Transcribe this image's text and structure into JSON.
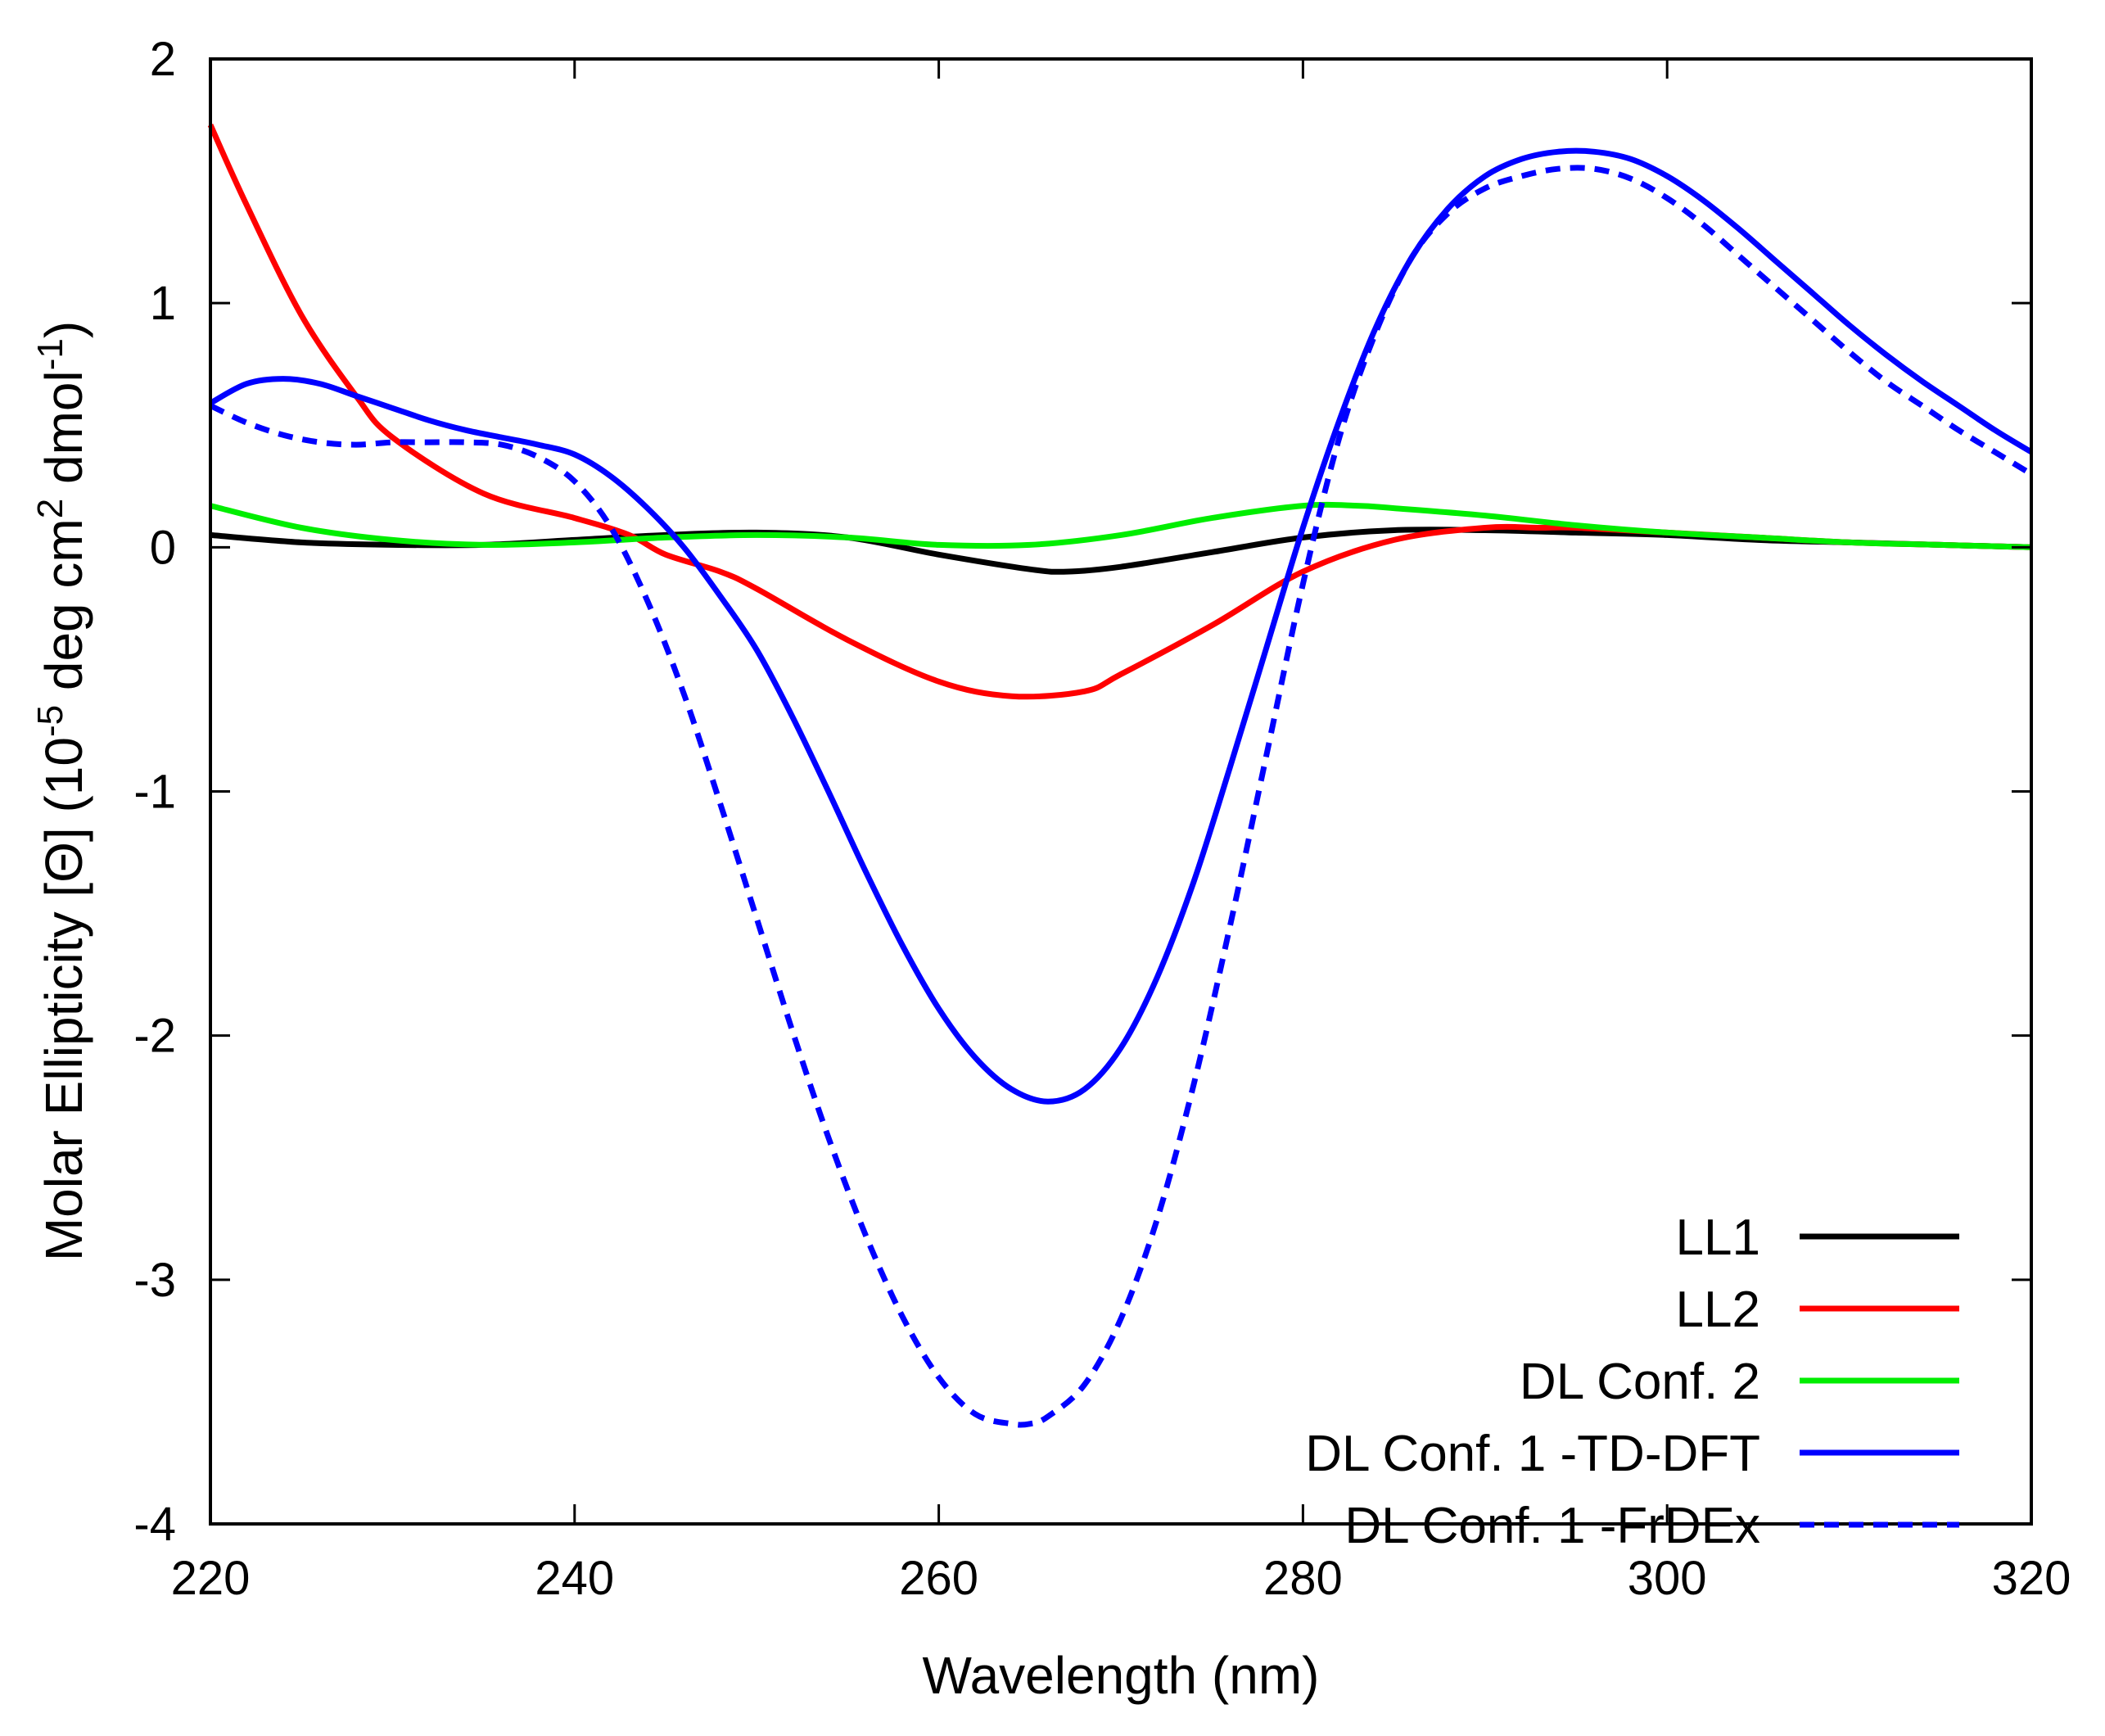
{
  "chart_data": {
    "type": "line",
    "title": "",
    "xlabel": "Wavelength (nm)",
    "ylabel": {
      "main": "Molar Ellipticity [",
      "theta": "Θ",
      "after_theta": "] (10",
      "exp1": "-5",
      "mid1": " deg cm",
      "exp2": "2",
      "mid2": " dmol",
      "exp3": "-1",
      "end": ")"
    },
    "xlim": [
      220,
      320
    ],
    "ylim": [
      -4,
      2
    ],
    "xticks": [
      220,
      240,
      260,
      280,
      300,
      320
    ],
    "yticks": [
      -4,
      -3,
      -2,
      -1,
      0,
      1,
      2
    ],
    "grid": false,
    "legend_position": "bottom-right",
    "series": [
      {
        "name": "LL1",
        "color": "#000000",
        "dashed": false,
        "x": [
          220,
          225,
          230,
          235,
          240,
          245,
          250,
          255,
          260,
          265,
          267,
          270,
          275,
          280,
          285,
          290,
          295,
          300,
          305,
          310,
          315,
          320
        ],
        "y": [
          0.05,
          0.02,
          0.01,
          0.01,
          0.03,
          0.05,
          0.06,
          0.04,
          -0.03,
          -0.09,
          -0.1,
          -0.08,
          -0.02,
          0.04,
          0.07,
          0.07,
          0.06,
          0.05,
          0.03,
          0.02,
          0.01,
          0.0
        ]
      },
      {
        "name": "LL2",
        "color": "#ff0000",
        "dashed": false,
        "x": [
          220,
          222,
          225,
          228,
          230,
          235,
          240,
          243,
          245,
          248,
          250,
          255,
          260,
          264,
          268,
          270,
          275,
          280,
          285,
          290,
          293,
          295,
          300,
          305,
          310,
          315,
          320
        ],
        "y": [
          1.73,
          1.4,
          0.95,
          0.62,
          0.45,
          0.22,
          0.12,
          0.05,
          -0.03,
          -0.1,
          -0.17,
          -0.38,
          -0.55,
          -0.61,
          -0.59,
          -0.52,
          -0.32,
          -0.1,
          0.03,
          0.08,
          0.08,
          0.08,
          0.06,
          0.04,
          0.02,
          0.01,
          0.0
        ]
      },
      {
        "name": "DL Conf. 2",
        "color": "#00ee00",
        "dashed": false,
        "x": [
          220,
          225,
          230,
          235,
          240,
          245,
          250,
          255,
          260,
          265,
          270,
          275,
          280,
          283,
          285,
          290,
          295,
          300,
          305,
          310,
          315,
          320
        ],
        "y": [
          0.17,
          0.08,
          0.03,
          0.01,
          0.02,
          0.04,
          0.05,
          0.04,
          0.01,
          0.01,
          0.05,
          0.12,
          0.17,
          0.17,
          0.16,
          0.13,
          0.09,
          0.06,
          0.04,
          0.02,
          0.01,
          0.0
        ]
      },
      {
        "name": "DL Conf. 1 -TD-DFT",
        "color": "#0000ff",
        "dashed": false,
        "x": [
          220,
          222,
          224,
          226,
          228,
          230,
          232,
          234,
          236,
          238,
          240,
          242,
          244,
          246,
          248,
          250,
          252,
          254,
          256,
          258,
          260,
          262,
          264,
          266,
          268,
          270,
          272,
          274,
          276,
          278,
          280,
          282,
          284,
          286,
          288,
          290,
          292,
          294,
          296,
          298,
          300,
          302,
          304,
          306,
          308,
          310,
          312,
          314,
          316,
          318,
          320
        ],
        "y": [
          0.59,
          0.67,
          0.69,
          0.67,
          0.62,
          0.57,
          0.52,
          0.48,
          0.45,
          0.42,
          0.38,
          0.29,
          0.16,
          0.0,
          -0.2,
          -0.42,
          -0.7,
          -1.01,
          -1.33,
          -1.63,
          -1.89,
          -2.09,
          -2.22,
          -2.27,
          -2.22,
          -2.05,
          -1.76,
          -1.37,
          -0.9,
          -0.41,
          0.08,
          0.52,
          0.9,
          1.19,
          1.39,
          1.52,
          1.59,
          1.62,
          1.62,
          1.59,
          1.52,
          1.42,
          1.3,
          1.17,
          1.04,
          0.91,
          0.79,
          0.68,
          0.58,
          0.48,
          0.39
        ]
      },
      {
        "name": "DL Conf. 1 -FrDEx",
        "color": "#0000ff",
        "dashed": true,
        "x": [
          220,
          222,
          224,
          226,
          228,
          230,
          232,
          234,
          236,
          238,
          240,
          242,
          244,
          246,
          248,
          250,
          252,
          254,
          256,
          258,
          260,
          262,
          264,
          265,
          266,
          268,
          270,
          272,
          274,
          276,
          278,
          280,
          282,
          284,
          286,
          288,
          290,
          292,
          294,
          296,
          298,
          300,
          302,
          304,
          306,
          308,
          310,
          312,
          314,
          316,
          318,
          320
        ],
        "y": [
          0.58,
          0.51,
          0.46,
          0.43,
          0.42,
          0.43,
          0.43,
          0.43,
          0.42,
          0.37,
          0.27,
          0.08,
          -0.22,
          -0.6,
          -1.05,
          -1.52,
          -1.99,
          -2.43,
          -2.82,
          -3.15,
          -3.4,
          -3.55,
          -3.59,
          -3.59,
          -3.56,
          -3.43,
          -3.16,
          -2.75,
          -2.2,
          -1.55,
          -0.85,
          -0.15,
          0.45,
          0.88,
          1.19,
          1.37,
          1.47,
          1.52,
          1.55,
          1.55,
          1.51,
          1.43,
          1.32,
          1.19,
          1.06,
          0.93,
          0.8,
          0.68,
          0.58,
          0.48,
          0.39,
          0.3
        ]
      }
    ]
  }
}
